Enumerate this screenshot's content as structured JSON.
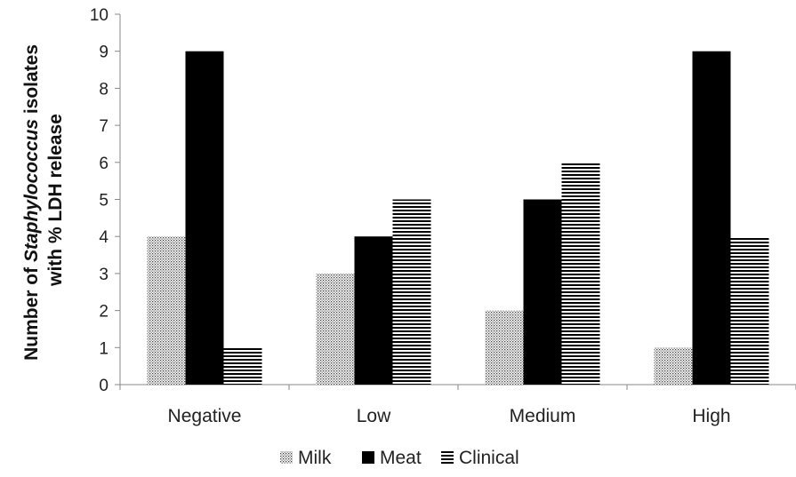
{
  "chart_data": {
    "type": "bar",
    "categories": [
      "Negative",
      "Low",
      "Medium",
      "High"
    ],
    "series": [
      {
        "name": "Milk",
        "values": [
          4,
          3,
          2,
          1
        ],
        "pattern": "dots",
        "color": "#555555"
      },
      {
        "name": "Meat",
        "values": [
          9,
          4,
          5,
          9
        ],
        "pattern": "solid",
        "color": "#000000"
      },
      {
        "name": "Clinical",
        "values": [
          1,
          5,
          6,
          4
        ],
        "pattern": "horizontal-lines",
        "color": "#000000"
      }
    ],
    "ylabel_line1_pre": "Number of ",
    "ylabel_line1_italic": "Staphylococcus",
    "ylabel_line1_post": " isolates",
    "ylabel_line2": "with % LDH release",
    "ylim": [
      0,
      10
    ],
    "yticks": [
      0,
      1,
      2,
      3,
      4,
      5,
      6,
      7,
      8,
      9,
      10
    ],
    "grid": false,
    "legend_position": "bottom"
  }
}
